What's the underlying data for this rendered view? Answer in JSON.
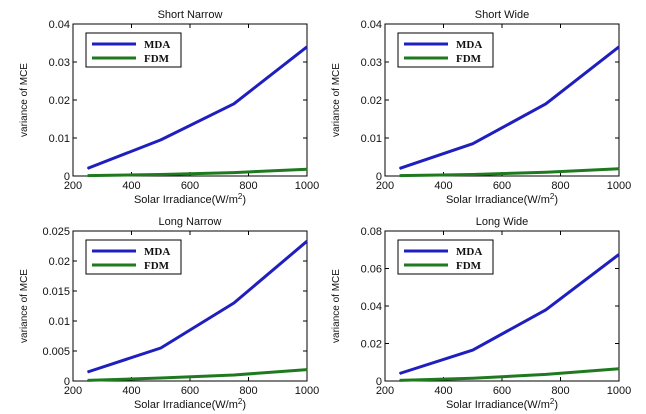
{
  "colors": {
    "mda": "#1f1fbf",
    "fdm": "#1f7a1f"
  },
  "chart_data": [
    {
      "type": "line",
      "title": "Short Narrow",
      "xlabel": "Solar Irradiance(W/m²)",
      "ylabel": "variance of MCE",
      "xlim": [
        200,
        1000
      ],
      "ylim": [
        0,
        0.04
      ],
      "xticks": [
        "200",
        "400",
        "600",
        "800",
        "1000"
      ],
      "xtick_values": [
        200,
        400,
        600,
        800,
        1000
      ],
      "yticks": [
        "0",
        "0.01",
        "0.02",
        "0.03",
        "0.04"
      ],
      "ytick_values": [
        0,
        0.01,
        0.02,
        0.03,
        0.04
      ],
      "legend_position": "top-left",
      "x": [
        250,
        500,
        750,
        1000
      ],
      "series": [
        {
          "name": "MDA",
          "values": [
            0.002,
            0.0095,
            0.019,
            0.034
          ]
        },
        {
          "name": "FDM",
          "values": [
            0.0001,
            0.0004,
            0.0009,
            0.0018
          ]
        }
      ]
    },
    {
      "type": "line",
      "title": "Short Wide",
      "xlabel": "Solar Irradiance(W/m²)",
      "ylabel": "variance of MCE",
      "xlim": [
        200,
        1000
      ],
      "ylim": [
        0,
        0.04
      ],
      "xticks": [
        "200",
        "400",
        "600",
        "800",
        "1000"
      ],
      "xtick_values": [
        200,
        400,
        600,
        800,
        1000
      ],
      "yticks": [
        "0",
        "0.01",
        "0.02",
        "0.03",
        "0.04"
      ],
      "ytick_values": [
        0,
        0.01,
        0.02,
        0.03,
        0.04
      ],
      "legend_position": "top-left",
      "x": [
        250,
        500,
        750,
        1000
      ],
      "series": [
        {
          "name": "MDA",
          "values": [
            0.002,
            0.0085,
            0.019,
            0.034
          ]
        },
        {
          "name": "FDM",
          "values": [
            0.0001,
            0.0004,
            0.001,
            0.0019
          ]
        }
      ]
    },
    {
      "type": "line",
      "title": "Long Narrow",
      "xlabel": "Solar Irradiance(W/m²)",
      "ylabel": "variance of MCE",
      "xlim": [
        200,
        1000
      ],
      "ylim": [
        0,
        0.025
      ],
      "xticks": [
        "200",
        "400",
        "600",
        "800",
        "1000"
      ],
      "xtick_values": [
        200,
        400,
        600,
        800,
        1000
      ],
      "yticks": [
        "0",
        "0.005",
        "0.01",
        "0.015",
        "0.02",
        "0.025"
      ],
      "ytick_values": [
        0,
        0.005,
        0.01,
        0.015,
        0.02,
        0.025
      ],
      "legend_position": "top-left",
      "x": [
        250,
        500,
        750,
        1000
      ],
      "series": [
        {
          "name": "MDA",
          "values": [
            0.0015,
            0.0055,
            0.013,
            0.0233
          ]
        },
        {
          "name": "FDM",
          "values": [
            0.0001,
            0.0005,
            0.001,
            0.0019
          ]
        }
      ]
    },
    {
      "type": "line",
      "title": "Long Wide",
      "xlabel": "Solar Irradiance(W/m²)",
      "ylabel": "variance of MCE",
      "xlim": [
        200,
        1000
      ],
      "ylim": [
        0,
        0.08
      ],
      "xticks": [
        "200",
        "400",
        "600",
        "800",
        "1000"
      ],
      "xtick_values": [
        200,
        400,
        600,
        800,
        1000
      ],
      "yticks": [
        "0",
        "0.02",
        "0.04",
        "0.06",
        "0.08"
      ],
      "ytick_values": [
        0,
        0.02,
        0.04,
        0.06,
        0.08
      ],
      "legend_position": "top-left",
      "x": [
        250,
        500,
        750,
        1000
      ],
      "series": [
        {
          "name": "MDA",
          "values": [
            0.004,
            0.0165,
            0.038,
            0.0675
          ]
        },
        {
          "name": "FDM",
          "values": [
            0.0003,
            0.0015,
            0.0035,
            0.0065
          ]
        }
      ]
    }
  ]
}
